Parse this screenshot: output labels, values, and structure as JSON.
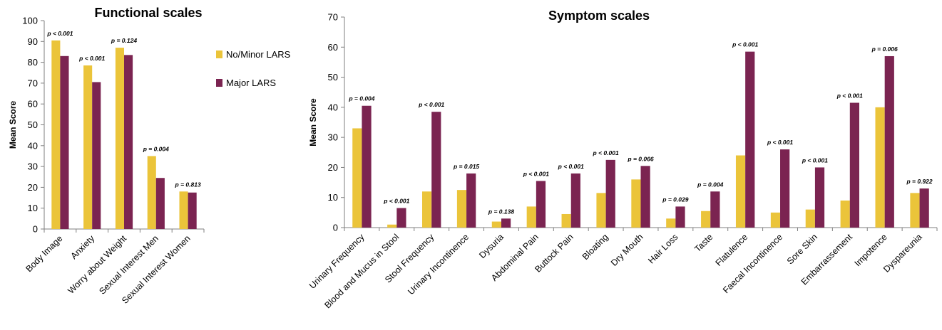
{
  "colors": {
    "minor": "#EBC43A",
    "major": "#7B2451",
    "axis": "#7f7f7f"
  },
  "legend": {
    "items": [
      {
        "label": "No/Minor LARS",
        "color": "#EBC43A"
      },
      {
        "label": "Major LARS",
        "color": "#7B2451"
      }
    ],
    "placement": "right of functional chart"
  },
  "chart_data": [
    {
      "type": "bar",
      "title": "Functional scales",
      "xlabel": "",
      "ylabel": "Mean Score",
      "ylim": [
        0,
        100
      ],
      "yticks": [
        0,
        10,
        20,
        30,
        40,
        50,
        60,
        70,
        80,
        90,
        100
      ],
      "grid": false,
      "categories": [
        "Body Image",
        "Anxiety",
        "Worry about Weight",
        "Sexual Interest Men",
        "Sexual Interest Women"
      ],
      "series": [
        {
          "name": "No/Minor LARS",
          "values": [
            90.5,
            78.5,
            87,
            35,
            18
          ]
        },
        {
          "name": "Major LARS",
          "values": [
            83,
            70.5,
            83.5,
            24.5,
            17.5
          ]
        }
      ],
      "annotations": [
        "p < 0.001",
        "p < 0.001",
        "p = 0.124",
        "p = 0.004",
        "p = 0.813"
      ]
    },
    {
      "type": "bar",
      "title": "Symptom scales",
      "xlabel": "",
      "ylabel": "Mean Score",
      "ylim": [
        0,
        70
      ],
      "yticks": [
        0,
        10,
        20,
        30,
        40,
        50,
        60,
        70
      ],
      "grid": false,
      "categories": [
        "Urinary Frequency",
        "Blood and Mucus in Stool",
        "Stool Frequency",
        "Urinary Incontinence",
        "Dysuria",
        "Abdominal Pain",
        "Buttock Pain",
        "Bloating",
        "Dry Mouth",
        "Hair Loss",
        "Taste",
        "Flatulence",
        "Faecal Incontinence",
        "Sore Skin",
        "Embarrassement",
        "Impotence",
        "Dyspareunia"
      ],
      "series": [
        {
          "name": "No/Minor LARS",
          "values": [
            33,
            1,
            12,
            12.5,
            2,
            7,
            4.5,
            11.5,
            16,
            3,
            5.5,
            24,
            5,
            6,
            9,
            40,
            11.5
          ]
        },
        {
          "name": "Major LARS",
          "values": [
            40.5,
            6.5,
            38.5,
            18,
            3,
            15.5,
            18,
            22.5,
            20.5,
            7,
            12,
            58.5,
            26,
            20,
            41.5,
            57,
            13
          ]
        }
      ],
      "annotations": [
        "p = 0.004",
        "p < 0.001",
        "p < 0.001",
        "p = 0.015",
        "p = 0.138",
        "p < 0.001",
        "p < 0.001",
        "p < 0.001",
        "p = 0.066",
        "p = 0.029",
        "p = 0.004",
        "p < 0.001",
        "p < 0.001",
        "p < 0.001",
        "p < 0.001",
        "p = 0.006",
        "p = 0.922"
      ]
    }
  ]
}
